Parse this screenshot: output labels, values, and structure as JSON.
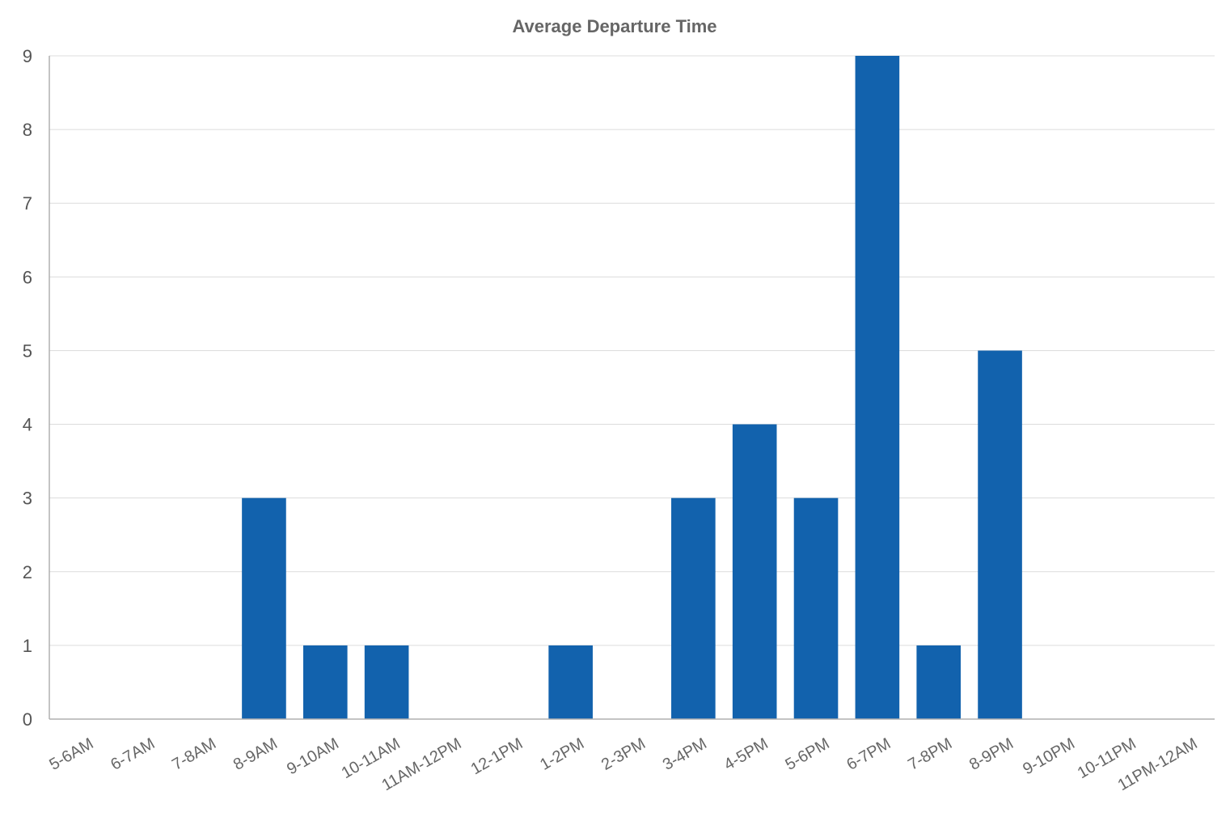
{
  "chart_data": {
    "type": "bar",
    "title": "Average Departure Time",
    "xlabel": "",
    "ylabel": "",
    "ylim": [
      0,
      9
    ],
    "yticks": [
      0,
      1,
      2,
      3,
      4,
      5,
      6,
      7,
      8,
      9
    ],
    "grid": true,
    "legend": "none",
    "bar_color": "#1262ad",
    "categories": [
      "5-6AM",
      "6-7AM",
      "7-8AM",
      "8-9AM",
      "9-10AM",
      "10-11AM",
      "11AM-12PM",
      "12-1PM",
      "1-2PM",
      "2-3PM",
      "3-4PM",
      "4-5PM",
      "5-6PM",
      "6-7PM",
      "7-8PM",
      "8-9PM",
      "9-10PM",
      "10-11PM",
      "11PM-12AM"
    ],
    "values": [
      0,
      0,
      0,
      3,
      1,
      1,
      0,
      0,
      1,
      0,
      3,
      4,
      3,
      9,
      1,
      5,
      0,
      0,
      0
    ]
  }
}
